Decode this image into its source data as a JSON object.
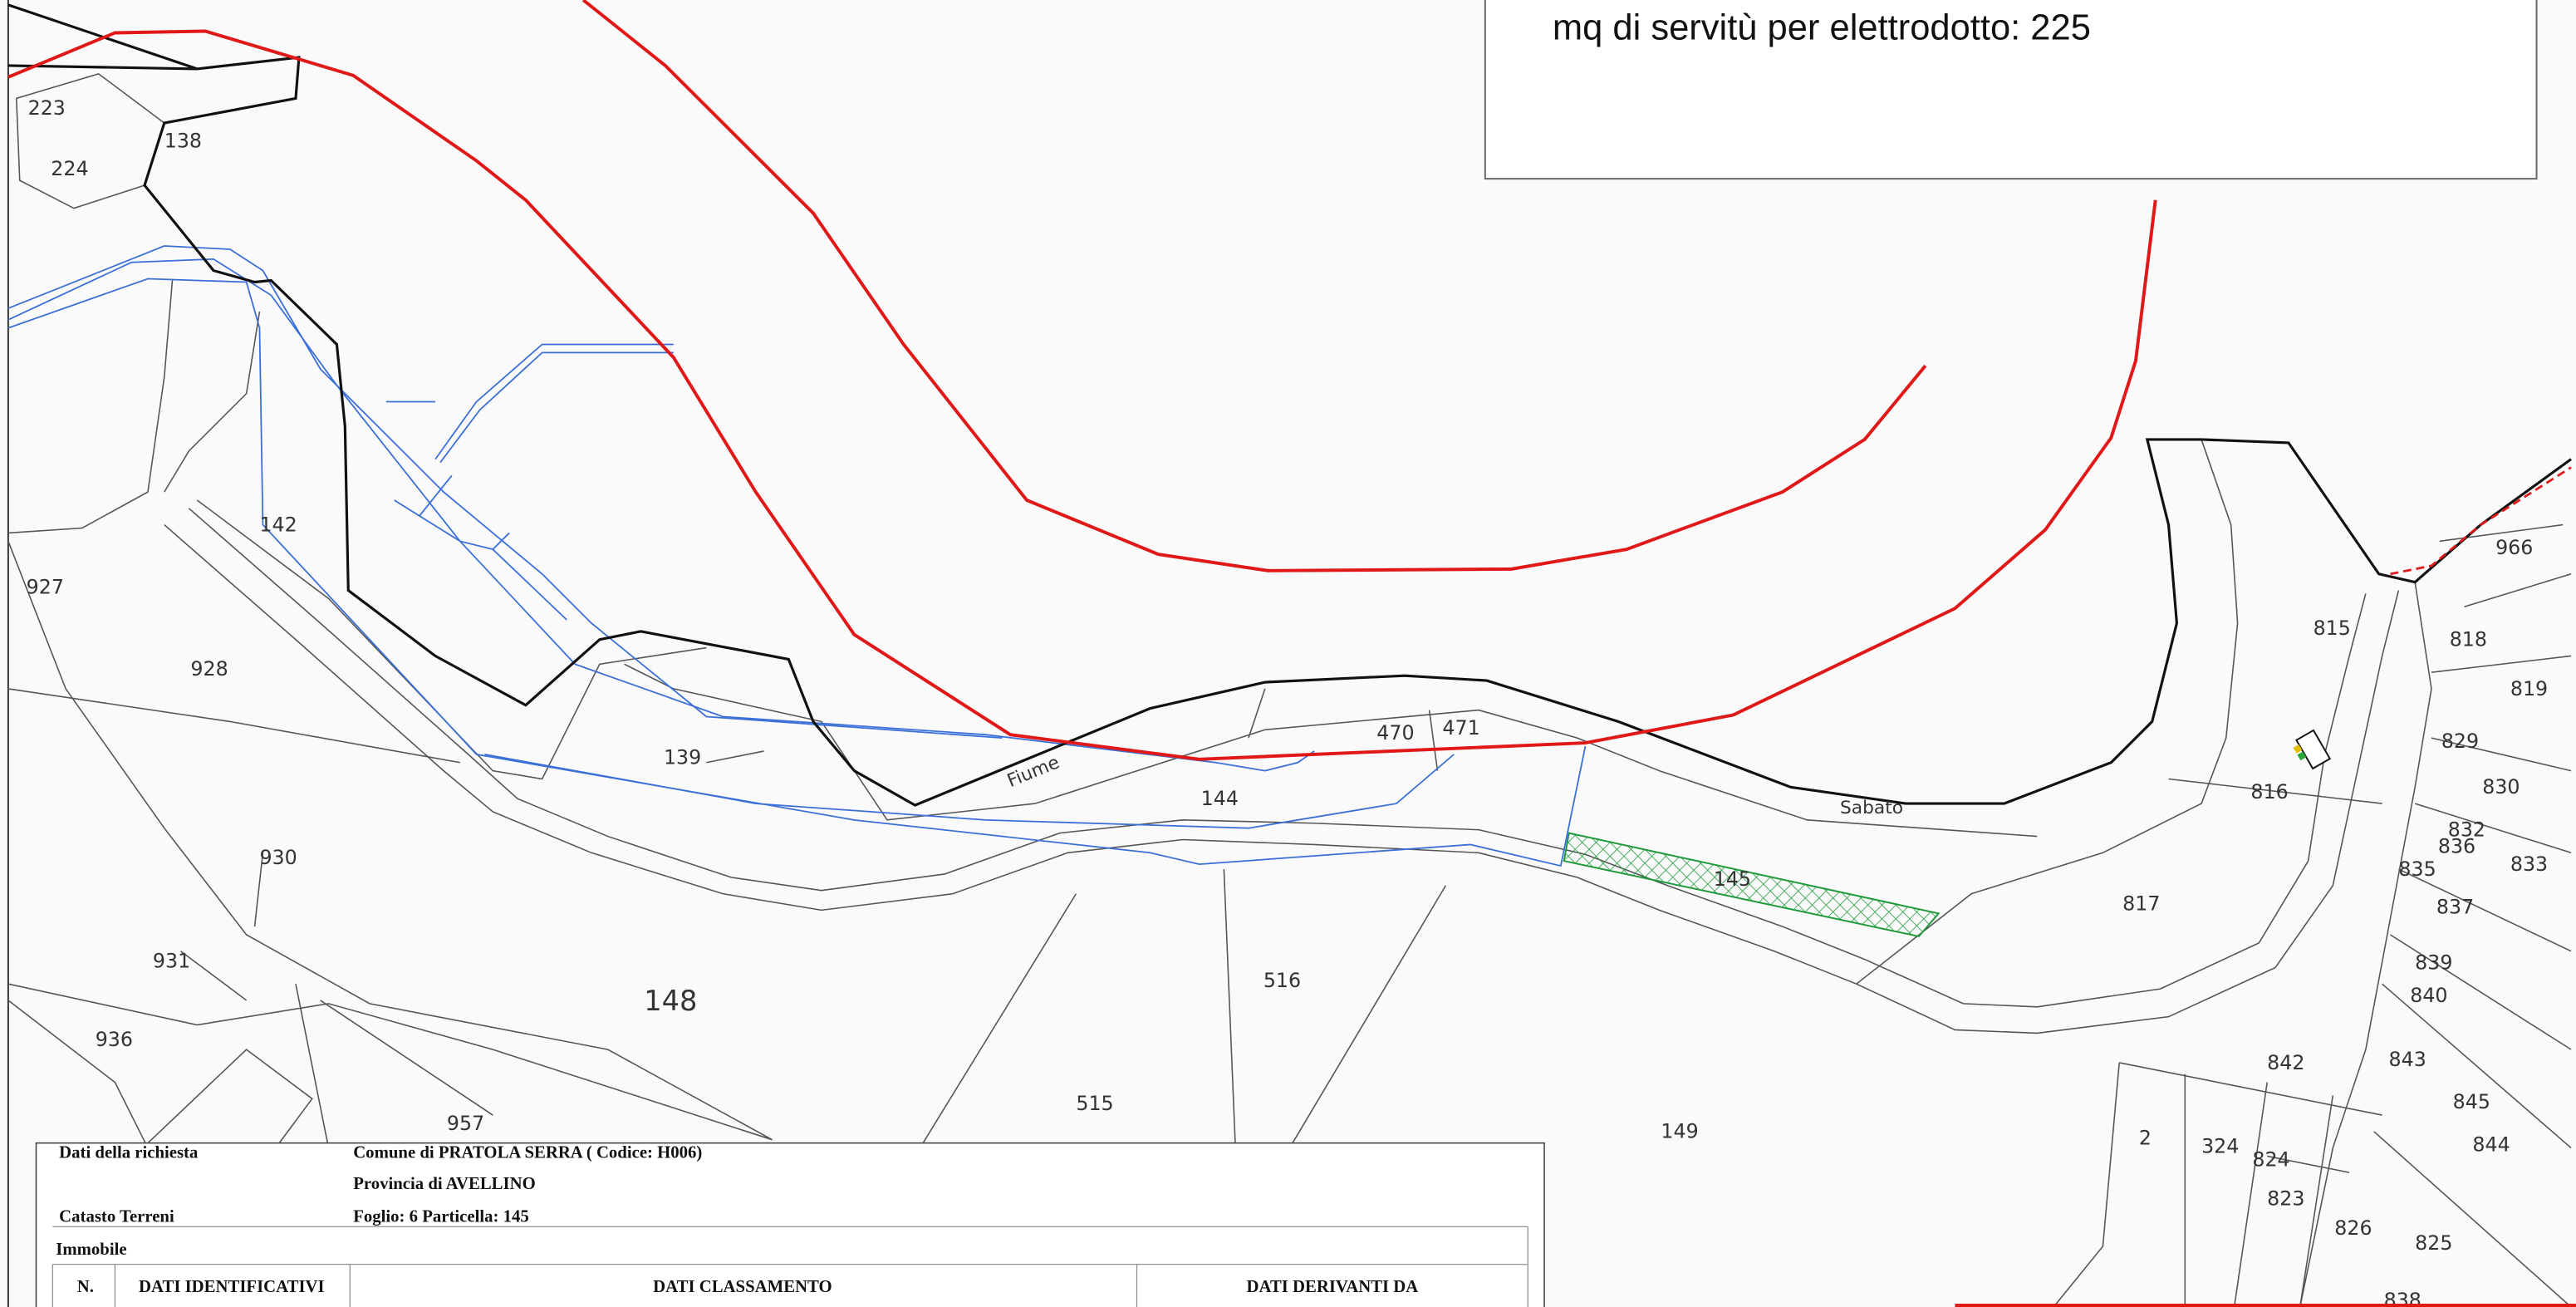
{
  "map": {
    "parcel_labels": [
      "223",
      "224",
      "138",
      "142",
      "927",
      "928",
      "139",
      "470",
      "471",
      "144",
      "930",
      "931",
      "936",
      "148",
      "957",
      "516",
      "515",
      "149",
      "145",
      "817",
      "816",
      "815",
      "818",
      "966",
      "819",
      "829",
      "830",
      "832",
      "836",
      "833",
      "835",
      "837",
      "839",
      "840",
      "842",
      "843",
      "845",
      "844",
      "2",
      "324",
      "824",
      "823",
      "826",
      "825",
      "838"
    ],
    "river_labels": [
      "Fiume",
      "Sabato"
    ]
  },
  "info_box": {
    "text": "mq di servitù per elettrodotto: 225"
  },
  "table": {
    "request_label": "Dati della richiesta",
    "municipality": "Comune di PRATOLA SERRA ( Codice: H006)",
    "province": "Provincia di AVELLINO",
    "registry": "Catasto Terreni",
    "sheet": "Foglio: 6 Particella: 145",
    "property": "Immobile",
    "columns": [
      "N.",
      "DATI IDENTIFICATIVI",
      "DATI CLASSAMENTO",
      "DATI DERIVANTI DA"
    ]
  }
}
